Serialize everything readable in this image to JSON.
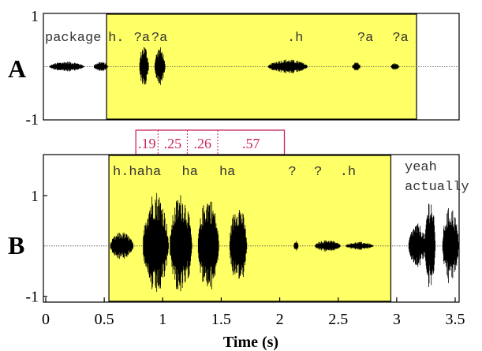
{
  "chart_data": {
    "type": "waveform",
    "x_axis": {
      "label": "Time (s)",
      "range": [
        0,
        3.5
      ],
      "ticks": [
        0,
        0.5,
        1,
        1.5,
        2,
        2.5,
        3,
        3.5
      ],
      "tick_labels": [
        "0",
        "0.5",
        "1",
        "1.5",
        "2",
        "2.5",
        "3",
        "3.5"
      ]
    },
    "panels": [
      {
        "label": "A",
        "y_range": [
          -1,
          1
        ],
        "y_tick_labels": [
          "1",
          "-1"
        ],
        "highlight": {
          "start": 0.52,
          "end": 3.17,
          "color": "#ffff66"
        },
        "transcription": [
          {
            "text": "package",
            "t": 0.0
          },
          {
            "text": "h.",
            "t": 0.52
          },
          {
            "text": "?a",
            "t": 0.74
          },
          {
            "text": "?a",
            "t": 0.89
          },
          {
            "text": ".h",
            "t": 2.05
          },
          {
            "text": "?a",
            "t": 2.65
          },
          {
            "text": "?a",
            "t": 2.95
          }
        ],
        "bursts": [
          {
            "t0": 0.03,
            "t1": 0.33,
            "amp": 0.1
          },
          {
            "t0": 0.41,
            "t1": 0.53,
            "amp": 0.1
          },
          {
            "t0": 0.8,
            "t1": 0.88,
            "amp": 0.42
          },
          {
            "t0": 0.93,
            "t1": 1.02,
            "amp": 0.38
          },
          {
            "t0": 1.9,
            "t1": 2.24,
            "amp": 0.14
          },
          {
            "t0": 2.62,
            "t1": 2.69,
            "amp": 0.09
          },
          {
            "t0": 2.95,
            "t1": 3.02,
            "amp": 0.07
          }
        ]
      },
      {
        "label": "B",
        "y_range": [
          -1.1,
          1.8
        ],
        "y_ticks": [
          1,
          -1
        ],
        "y_tick_labels": [
          "1",
          "-1"
        ],
        "highlight": {
          "start": 0.54,
          "end": 2.95,
          "color": "#ffff66"
        },
        "transcription": [
          {
            "text": "h.haha",
            "t": 0.56
          },
          {
            "text": "ha",
            "t": 1.15
          },
          {
            "text": "ha",
            "t": 1.47
          },
          {
            "text": "?",
            "t": 2.06
          },
          {
            "text": "?",
            "t": 2.28
          },
          {
            "text": ".h",
            "t": 2.5
          }
        ],
        "outside_text": [
          "yeah",
          "actually"
        ],
        "bursts": [
          {
            "t0": 0.55,
            "t1": 0.75,
            "amp": 0.28
          },
          {
            "t0": 0.83,
            "t1": 1.05,
            "amp": 1.12
          },
          {
            "t0": 1.06,
            "t1": 1.25,
            "amp": 1.05
          },
          {
            "t0": 1.3,
            "t1": 1.48,
            "amp": 1.0
          },
          {
            "t0": 1.57,
            "t1": 1.72,
            "amp": 0.85
          },
          {
            "t0": 2.12,
            "t1": 2.16,
            "amp": 0.1
          },
          {
            "t0": 2.3,
            "t1": 2.52,
            "amp": 0.12
          },
          {
            "t0": 2.56,
            "t1": 2.8,
            "amp": 0.08
          },
          {
            "t0": 3.1,
            "t1": 3.25,
            "amp": 0.45
          },
          {
            "t0": 3.24,
            "t1": 3.33,
            "amp": 1.0
          },
          {
            "t0": 3.39,
            "t1": 3.53,
            "amp": 0.8
          }
        ]
      }
    ],
    "interval_annotation": {
      "color": "#c8285a",
      "segments": [
        {
          "label": ".19",
          "start": 0.77,
          "end": 0.96
        },
        {
          "label": ".25",
          "start": 0.96,
          "end": 1.21
        },
        {
          "label": ".26",
          "start": 1.21,
          "end": 1.47
        },
        {
          "label": ".57",
          "start": 1.47,
          "end": 2.04
        }
      ]
    }
  }
}
